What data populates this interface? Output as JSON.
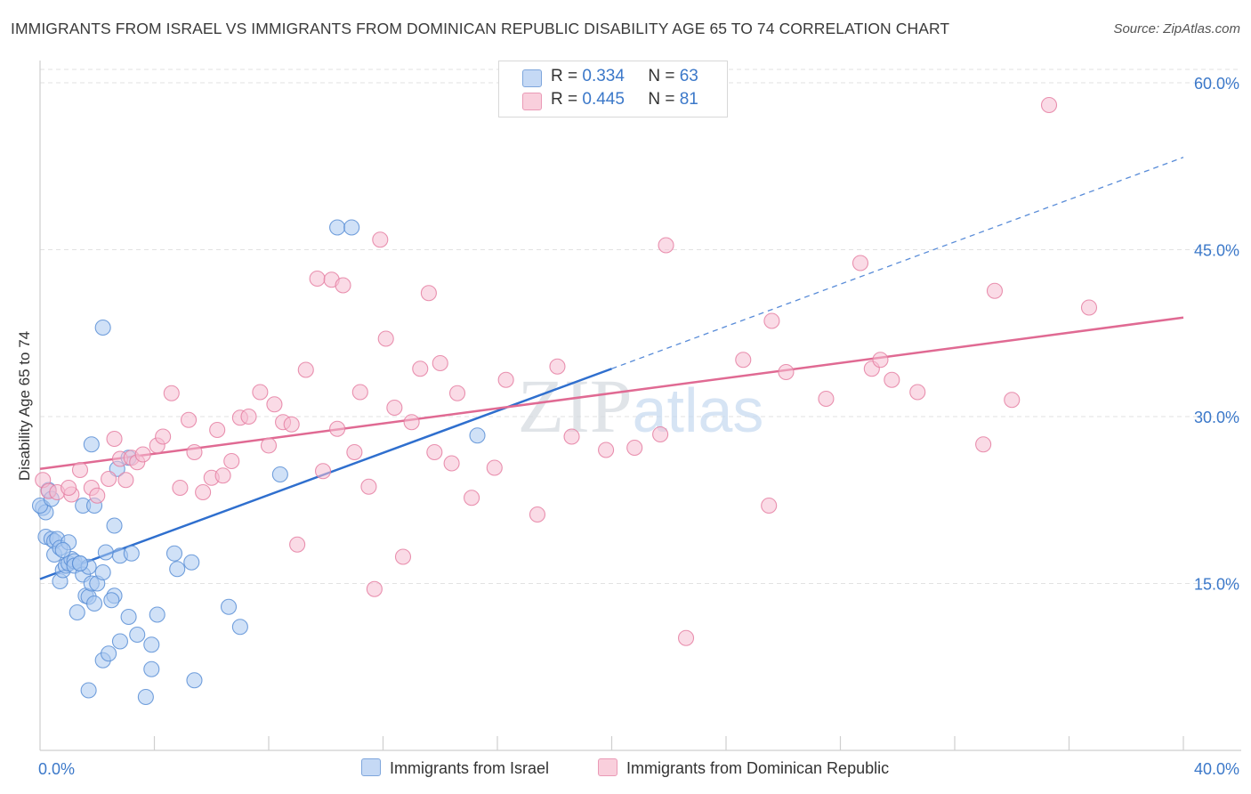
{
  "title": "IMMIGRANTS FROM ISRAEL VS IMMIGRANTS FROM DOMINICAN REPUBLIC DISABILITY AGE 65 TO 74 CORRELATION CHART",
  "source": "Source: ZipAtlas.com",
  "watermark": "ZIPatlas",
  "legend": {
    "rows": [
      {
        "r_label": "R =",
        "r_value": "0.334",
        "n_label": "N =",
        "n_value": "63"
      },
      {
        "r_label": "R =",
        "r_value": "0.445",
        "n_label": "N =",
        "n_value": "81"
      }
    ]
  },
  "colors": {
    "israel_fill": "#a9c8f0",
    "israel_stroke": "#5b8fd6",
    "israel_line": "#2f6fce",
    "dr_fill": "#f6bed1",
    "dr_stroke": "#e57fa2",
    "dr_line": "#e06a93",
    "axis_label": "#3b78c9",
    "grid": "#e2e2e2"
  },
  "chart_data": {
    "type": "scatter",
    "title": "IMMIGRANTS FROM ISRAEL VS IMMIGRANTS FROM DOMINICAN REPUBLIC DISABILITY AGE 65 TO 74 CORRELATION CHART",
    "xlabel": "",
    "ylabel": "Disability Age 65 to 74",
    "xlim": [
      0,
      40
    ],
    "ylim": [
      0,
      62
    ],
    "x_tick_labels": [
      "0.0%",
      "40.0%"
    ],
    "y_ticks": [
      15,
      30,
      45,
      60
    ],
    "y_tick_labels": [
      "15.0%",
      "30.0%",
      "45.0%",
      "60.0%"
    ],
    "grid": true,
    "legend_position": "top-center",
    "series": [
      {
        "name": "Immigrants from Israel",
        "r": 0.334,
        "n": 63,
        "trend": {
          "x0": 0,
          "y0": 15.4,
          "x1": 20,
          "y1": 34.3,
          "dashed_to_x": 40,
          "dashed_to_y": 53.3
        },
        "points": [
          [
            0.1,
            21.8
          ],
          [
            0.2,
            21.4
          ],
          [
            0.3,
            23.4
          ],
          [
            0.2,
            19.2
          ],
          [
            0.4,
            19.0
          ],
          [
            0.5,
            18.8
          ],
          [
            0.6,
            19.0
          ],
          [
            0.5,
            17.6
          ],
          [
            0.7,
            18.2
          ],
          [
            0.7,
            15.2
          ],
          [
            0.8,
            16.2
          ],
          [
            0.9,
            16.6
          ],
          [
            1.0,
            16.8
          ],
          [
            1.1,
            17.2
          ],
          [
            1.2,
            17.0
          ],
          [
            1.2,
            16.6
          ],
          [
            1.4,
            16.8
          ],
          [
            1.3,
            12.4
          ],
          [
            1.5,
            15.8
          ],
          [
            1.6,
            13.9
          ],
          [
            1.7,
            13.8
          ],
          [
            1.8,
            15.0
          ],
          [
            1.9,
            13.2
          ],
          [
            2.0,
            15.0
          ],
          [
            2.2,
            16.0
          ],
          [
            2.3,
            17.8
          ],
          [
            1.0,
            18.7
          ],
          [
            0.8,
            18.0
          ],
          [
            1.8,
            27.5
          ],
          [
            2.2,
            8.1
          ],
          [
            2.4,
            8.7
          ],
          [
            2.6,
            13.9
          ],
          [
            2.8,
            9.8
          ],
          [
            3.1,
            12.0
          ],
          [
            3.4,
            10.4
          ],
          [
            3.9,
            9.5
          ],
          [
            4.1,
            12.2
          ],
          [
            3.9,
            7.3
          ],
          [
            3.7,
            4.8
          ],
          [
            1.7,
            5.4
          ],
          [
            2.7,
            25.3
          ],
          [
            3.1,
            26.3
          ],
          [
            2.6,
            20.2
          ],
          [
            2.5,
            13.5
          ],
          [
            1.5,
            22.0
          ],
          [
            4.8,
            16.3
          ],
          [
            5.3,
            16.9
          ],
          [
            4.7,
            17.7
          ],
          [
            5.4,
            6.3
          ],
          [
            6.6,
            12.9
          ],
          [
            7.0,
            11.1
          ],
          [
            8.4,
            24.8
          ],
          [
            10.4,
            47.0
          ],
          [
            10.9,
            47.0
          ],
          [
            2.2,
            38.0
          ],
          [
            15.3,
            28.3
          ],
          [
            0.0,
            22.0
          ],
          [
            1.7,
            16.5
          ],
          [
            2.8,
            17.5
          ],
          [
            1.9,
            22.0
          ],
          [
            0.4,
            22.6
          ],
          [
            3.2,
            17.7
          ],
          [
            1.4,
            16.8
          ]
        ]
      },
      {
        "name": "Immigrants from Dominican Republic",
        "r": 0.445,
        "n": 81,
        "trend": {
          "x0": 0,
          "y0": 25.3,
          "x1": 40,
          "y1": 38.9
        },
        "points": [
          [
            0.1,
            24.3
          ],
          [
            0.3,
            23.3
          ],
          [
            0.6,
            23.2
          ],
          [
            1.1,
            23.0
          ],
          [
            1.4,
            25.2
          ],
          [
            1.8,
            23.6
          ],
          [
            2.0,
            22.9
          ],
          [
            2.4,
            24.4
          ],
          [
            2.6,
            28.0
          ],
          [
            2.8,
            26.2
          ],
          [
            3.0,
            24.3
          ],
          [
            3.2,
            26.3
          ],
          [
            3.4,
            25.9
          ],
          [
            3.6,
            26.6
          ],
          [
            4.1,
            27.4
          ],
          [
            4.3,
            28.2
          ],
          [
            4.6,
            32.1
          ],
          [
            4.9,
            23.6
          ],
          [
            5.2,
            29.7
          ],
          [
            5.4,
            26.8
          ],
          [
            5.7,
            23.2
          ],
          [
            6.0,
            24.5
          ],
          [
            6.2,
            28.8
          ],
          [
            6.4,
            24.7
          ],
          [
            6.7,
            26.0
          ],
          [
            7.0,
            29.9
          ],
          [
            7.3,
            30.0
          ],
          [
            7.7,
            32.2
          ],
          [
            8.0,
            27.4
          ],
          [
            8.2,
            31.1
          ],
          [
            8.5,
            29.5
          ],
          [
            8.8,
            29.3
          ],
          [
            9.0,
            18.5
          ],
          [
            9.3,
            34.2
          ],
          [
            9.7,
            42.4
          ],
          [
            9.9,
            25.1
          ],
          [
            10.2,
            42.3
          ],
          [
            10.4,
            28.9
          ],
          [
            10.6,
            41.8
          ],
          [
            11.0,
            26.8
          ],
          [
            11.2,
            32.2
          ],
          [
            11.5,
            23.7
          ],
          [
            11.7,
            14.5
          ],
          [
            11.9,
            45.9
          ],
          [
            12.1,
            37.0
          ],
          [
            12.4,
            30.8
          ],
          [
            12.7,
            17.4
          ],
          [
            13.0,
            29.5
          ],
          [
            13.3,
            34.3
          ],
          [
            13.6,
            41.1
          ],
          [
            13.8,
            26.8
          ],
          [
            14.0,
            34.8
          ],
          [
            14.4,
            25.8
          ],
          [
            14.6,
            32.1
          ],
          [
            15.1,
            22.7
          ],
          [
            15.9,
            25.4
          ],
          [
            16.3,
            33.3
          ],
          [
            17.4,
            21.2
          ],
          [
            18.1,
            34.5
          ],
          [
            18.6,
            28.2
          ],
          [
            19.8,
            27.0
          ],
          [
            20.8,
            27.2
          ],
          [
            21.7,
            28.4
          ],
          [
            21.9,
            45.4
          ],
          [
            22.6,
            10.1
          ],
          [
            24.6,
            35.1
          ],
          [
            25.5,
            22.0
          ],
          [
            25.6,
            38.6
          ],
          [
            26.1,
            34.0
          ],
          [
            27.5,
            31.6
          ],
          [
            28.7,
            43.8
          ],
          [
            29.1,
            34.3
          ],
          [
            29.4,
            35.1
          ],
          [
            29.8,
            33.3
          ],
          [
            30.7,
            32.2
          ],
          [
            33.0,
            27.5
          ],
          [
            33.4,
            41.3
          ],
          [
            34.0,
            31.5
          ],
          [
            35.3,
            58.0
          ],
          [
            36.7,
            39.8
          ],
          [
            1.0,
            23.6
          ]
        ]
      }
    ]
  },
  "bottom_legend": [
    {
      "label": "Immigrants from Israel"
    },
    {
      "label": "Immigrants from Dominican Republic"
    }
  ]
}
